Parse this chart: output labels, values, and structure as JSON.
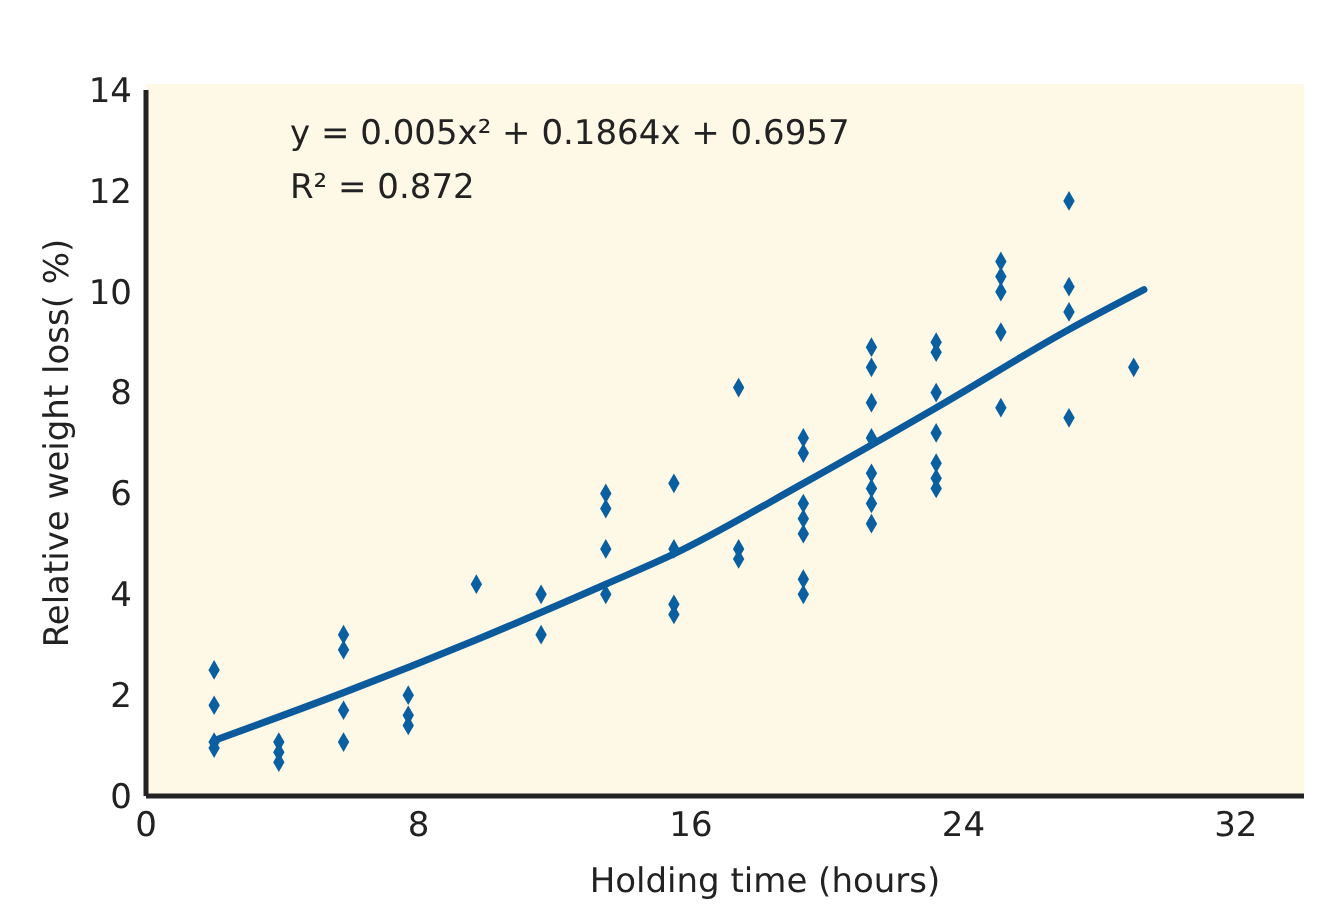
{
  "chart_data": {
    "type": "scatter",
    "xlabel": "Holding time (hours)",
    "ylabel": "Relative weight loss( %)",
    "annotations": [
      "y = 0.005x² + 0.1864x + 0.6957",
      "R² = 0.872"
    ],
    "xlim": [
      0,
      34
    ],
    "xticks": [
      0,
      8,
      16,
      24,
      32
    ],
    "ylim": [
      0,
      14
    ],
    "yticks": [
      0,
      2,
      4,
      6,
      8,
      10,
      12,
      14
    ],
    "grid": false,
    "marker": "diamond",
    "series": [
      {
        "color": "#0a5fa0",
        "x": [
          2,
          2,
          2,
          2,
          3.9,
          3.9,
          3.9,
          5.8,
          5.8,
          5.8,
          5.8,
          7.7,
          7.7,
          7.7,
          9.7,
          11.6,
          11.6,
          13.5,
          13.5,
          13.5,
          13.5,
          15.5,
          15.5,
          15.5,
          15.5,
          17.4,
          17.4,
          17.4,
          19.3,
          19.3,
          19.3,
          19.3,
          19.3,
          19.3,
          19.3,
          21.3,
          21.3,
          21.3,
          21.3,
          21.3,
          21.3,
          21.3,
          21.3,
          23.2,
          23.2,
          23.2,
          23.2,
          23.2,
          23.2,
          23.2,
          25.1,
          25.1,
          25.1,
          25.1,
          25.1,
          27.1,
          27.1,
          27.1,
          27.1,
          29.0
        ],
        "values": [
          2.5,
          1.8,
          1.07,
          0.95,
          1.07,
          0.87,
          0.67,
          3.2,
          2.9,
          1.7,
          1.07,
          2.0,
          1.6,
          1.4,
          4.2,
          4.0,
          3.2,
          6.0,
          5.7,
          4.9,
          4.0,
          6.2,
          4.9,
          3.8,
          3.6,
          8.1,
          4.9,
          4.7,
          7.1,
          6.8,
          5.8,
          5.5,
          5.2,
          4.3,
          4.0,
          8.9,
          8.5,
          7.8,
          7.1,
          6.4,
          6.1,
          5.8,
          5.4,
          9.0,
          8.8,
          8.0,
          7.2,
          6.6,
          6.3,
          6.1,
          10.6,
          10.3,
          10.0,
          9.2,
          7.7,
          11.8,
          10.1,
          9.6,
          7.5,
          8.5
        ]
      },
      {
        "type": "line",
        "color": "#0a5a9c",
        "line_style": "solid",
        "marker": "none",
        "x": [
          2,
          5.8,
          9.7,
          13.5,
          15.5,
          19.3,
          23.2,
          27.1,
          29.3
        ],
        "values": [
          1.1,
          2.05,
          3.1,
          4.2,
          4.8,
          6.2,
          7.7,
          9.25,
          10.04
        ]
      }
    ]
  }
}
